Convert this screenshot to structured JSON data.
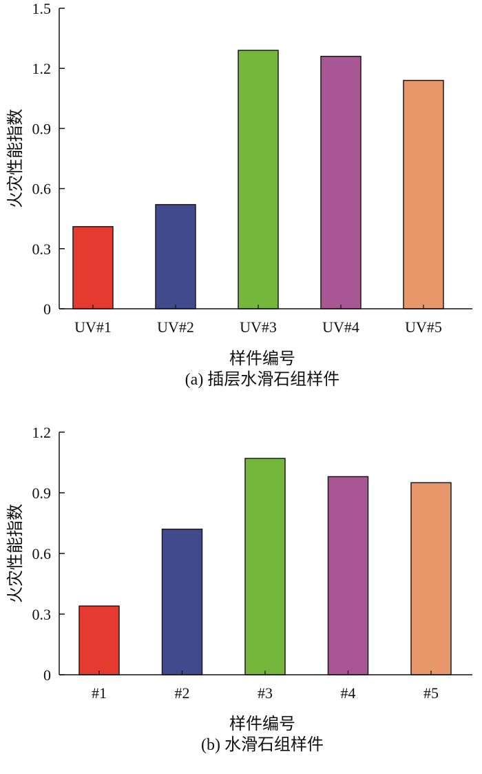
{
  "chart_data": [
    {
      "type": "bar",
      "title": "(a) 插层水滑石组样件",
      "xlabel": "样件编号",
      "ylabel": "火灾性能指数",
      "categories": [
        "UV#1",
        "UV#2",
        "UV#3",
        "UV#4",
        "UV#5"
      ],
      "values": [
        0.41,
        0.52,
        1.29,
        1.26,
        1.14
      ],
      "colors": [
        "#e53a2f",
        "#414a8c",
        "#75b63c",
        "#a85794",
        "#e8976a"
      ],
      "ylim": [
        0,
        1.5
      ],
      "yticks": [
        0,
        0.3,
        0.6,
        0.9,
        1.2,
        1.5
      ],
      "ytick_labels": [
        "0",
        "0.3",
        "0.6",
        "0.9",
        "1.2",
        "1.5"
      ],
      "grid": false
    },
    {
      "type": "bar",
      "title": "(b) 水滑石组样件",
      "xlabel": "样件编号",
      "ylabel": "火灾性能指数",
      "categories": [
        "#1",
        "#2",
        "#3",
        "#4",
        "#5"
      ],
      "values": [
        0.34,
        0.72,
        1.07,
        0.98,
        0.95
      ],
      "colors": [
        "#e53a2f",
        "#414a8c",
        "#75b63c",
        "#a85794",
        "#e8976a"
      ],
      "ylim": [
        0,
        1.2
      ],
      "yticks": [
        0,
        0.3,
        0.6,
        0.9,
        1.2
      ],
      "ytick_labels": [
        "0",
        "0.3",
        "0.6",
        "0.9",
        "1.2"
      ],
      "grid": false
    }
  ]
}
